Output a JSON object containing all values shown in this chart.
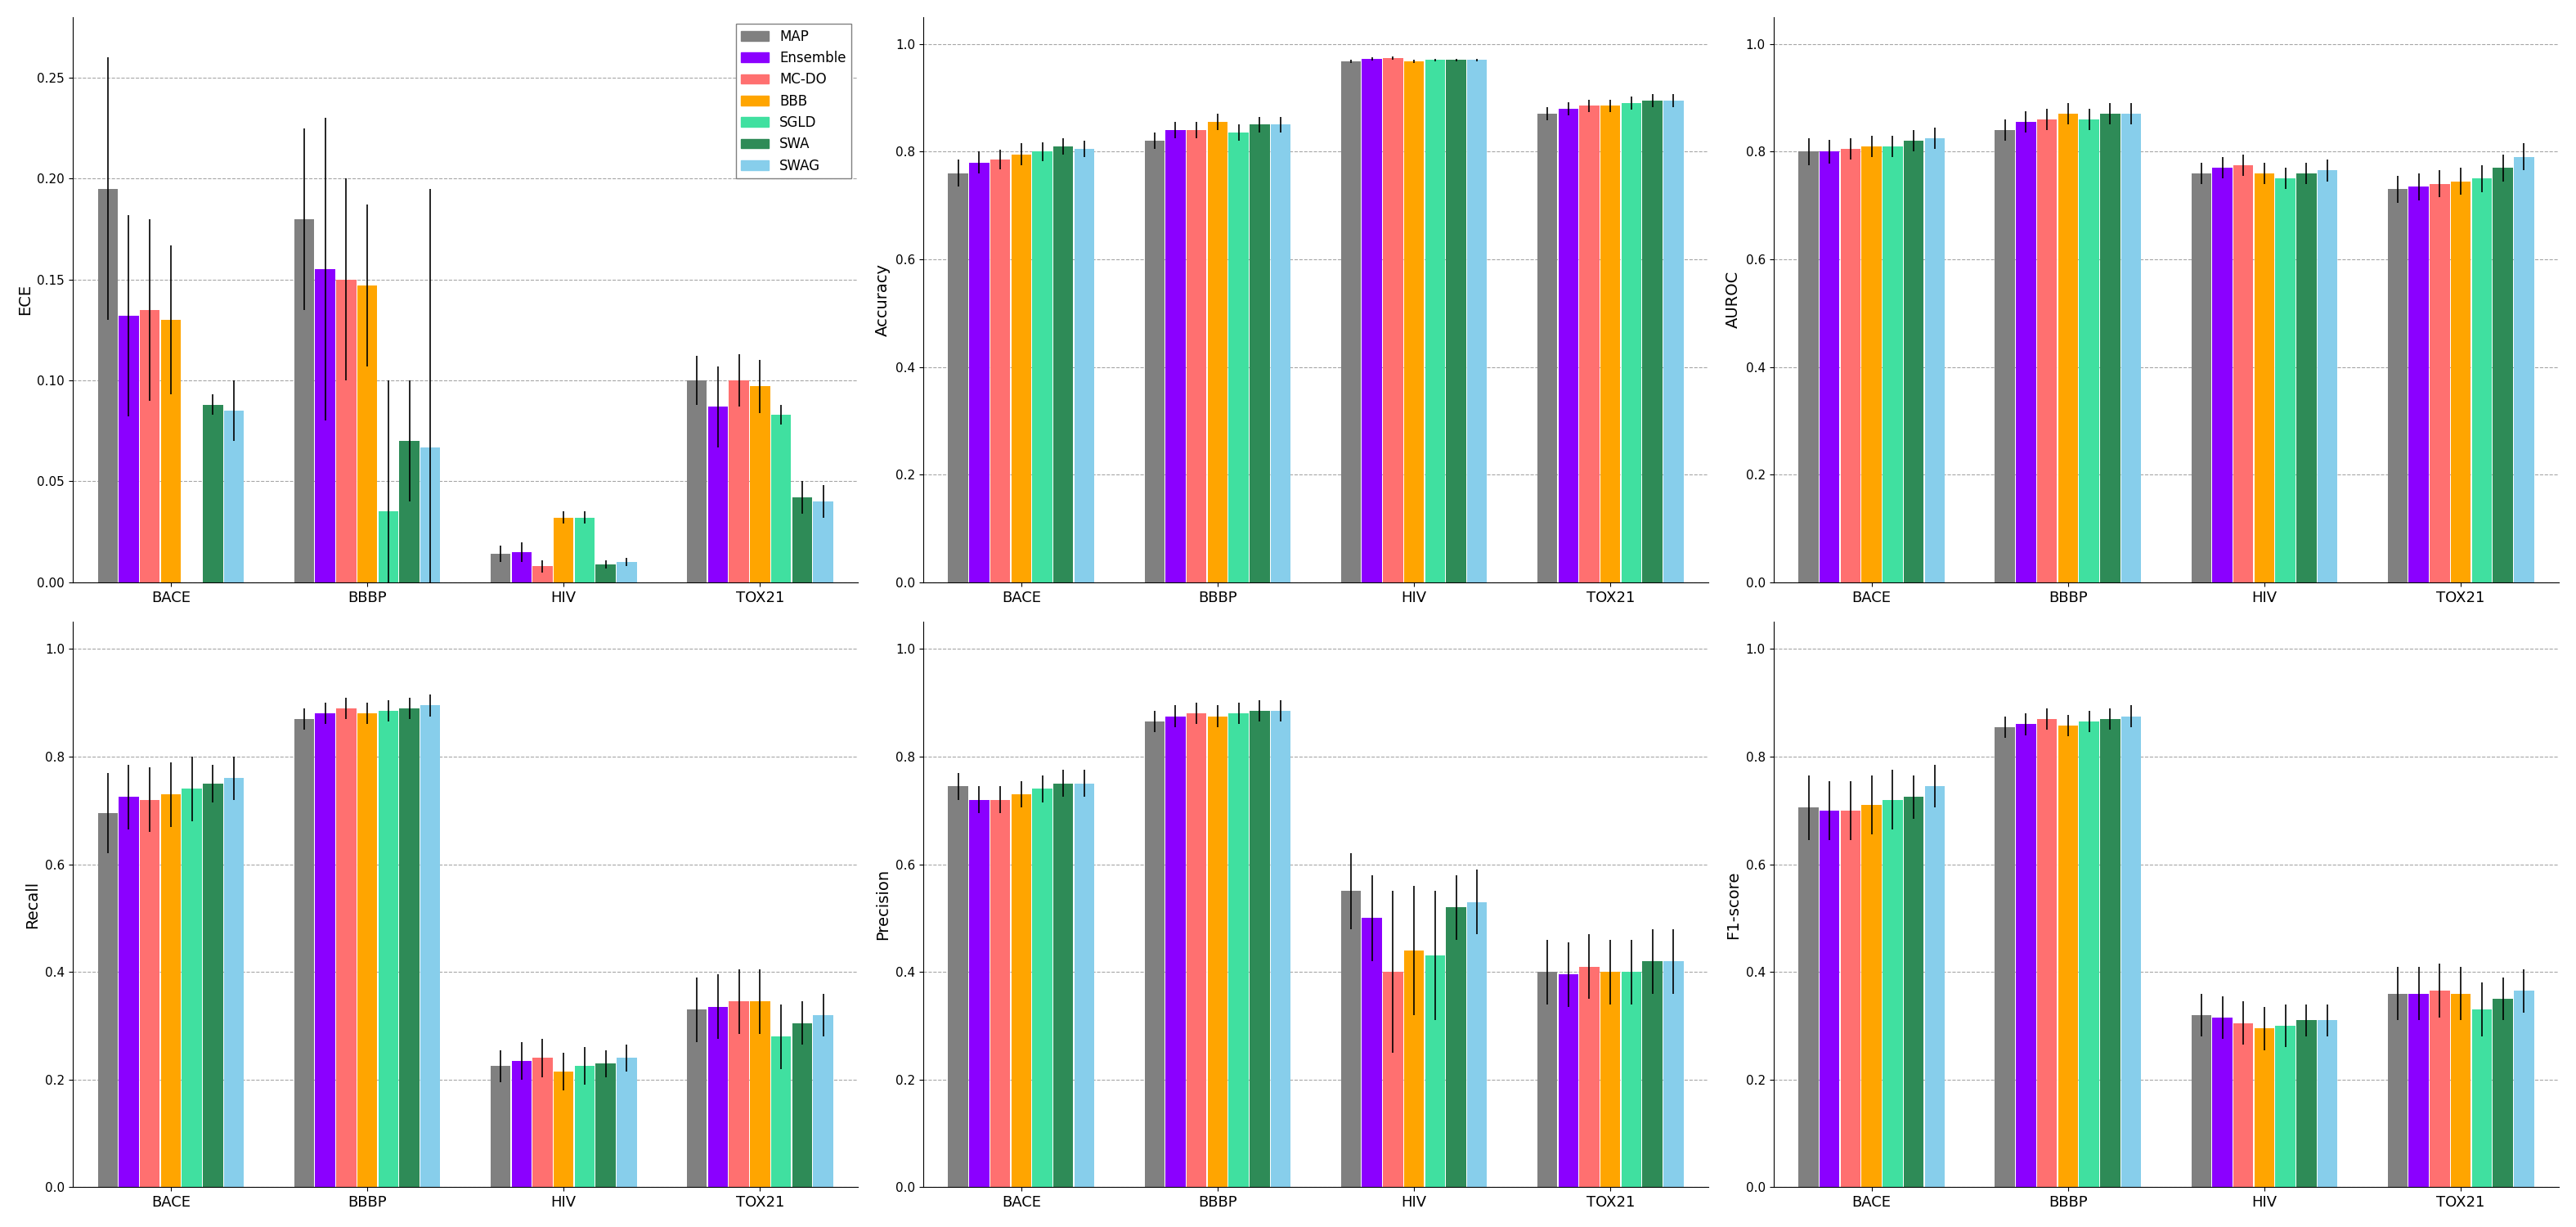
{
  "methods": [
    "MAP",
    "Ensemble",
    "MC-DO",
    "BBB",
    "SGLD",
    "SWA",
    "SWAG"
  ],
  "colors": [
    "#808080",
    "#8B00FF",
    "#FF7070",
    "#FFA500",
    "#40E0A0",
    "#2E8B57",
    "#87CEEB"
  ],
  "datasets": [
    "BACE",
    "BBBP",
    "HIV",
    "TOX21"
  ],
  "metrics": [
    "ECE",
    "Accuracy",
    "AUROC",
    "Recall",
    "Precision",
    "F1-score"
  ],
  "ECE": {
    "means": [
      [
        0.195,
        0.132,
        0.135,
        0.13,
        0.0,
        0.088,
        0.085
      ],
      [
        0.18,
        0.155,
        0.15,
        0.147,
        0.035,
        0.07,
        0.067
      ],
      [
        0.014,
        0.015,
        0.008,
        0.032,
        0.032,
        0.009,
        0.01
      ],
      [
        0.1,
        0.087,
        0.1,
        0.097,
        0.083,
        0.042,
        0.04
      ]
    ],
    "errors": [
      [
        0.065,
        0.05,
        0.045,
        0.037,
        0.0,
        0.005,
        0.015
      ],
      [
        0.045,
        0.075,
        0.05,
        0.04,
        0.065,
        0.03,
        0.128
      ],
      [
        0.004,
        0.005,
        0.003,
        0.003,
        0.003,
        0.002,
        0.002
      ],
      [
        0.012,
        0.02,
        0.013,
        0.013,
        0.005,
        0.008,
        0.008
      ]
    ],
    "ylim": [
      0,
      0.28
    ],
    "yticks": [
      0.0,
      0.05,
      0.1,
      0.15,
      0.2,
      0.25
    ]
  },
  "Accuracy": {
    "means": [
      [
        0.76,
        0.78,
        0.785,
        0.795,
        0.8,
        0.81,
        0.805
      ],
      [
        0.82,
        0.84,
        0.84,
        0.855,
        0.835,
        0.85,
        0.85
      ],
      [
        0.968,
        0.972,
        0.974,
        0.968,
        0.97,
        0.97,
        0.97
      ],
      [
        0.87,
        0.88,
        0.885,
        0.885,
        0.89,
        0.895,
        0.895
      ]
    ],
    "errors": [
      [
        0.025,
        0.02,
        0.018,
        0.02,
        0.018,
        0.015,
        0.015
      ],
      [
        0.015,
        0.015,
        0.015,
        0.015,
        0.015,
        0.015,
        0.015
      ],
      [
        0.003,
        0.003,
        0.003,
        0.003,
        0.003,
        0.003,
        0.003
      ],
      [
        0.012,
        0.012,
        0.012,
        0.012,
        0.012,
        0.012,
        0.012
      ]
    ],
    "ylim": [
      0,
      1.05
    ],
    "yticks": [
      0.0,
      0.2,
      0.4,
      0.6,
      0.8,
      1.0
    ]
  },
  "AUROC": {
    "means": [
      [
        0.8,
        0.8,
        0.805,
        0.81,
        0.81,
        0.82,
        0.825
      ],
      [
        0.84,
        0.855,
        0.86,
        0.87,
        0.86,
        0.87,
        0.87
      ],
      [
        0.76,
        0.77,
        0.775,
        0.76,
        0.75,
        0.76,
        0.765
      ],
      [
        0.73,
        0.735,
        0.74,
        0.745,
        0.75,
        0.77,
        0.79
      ]
    ],
    "errors": [
      [
        0.025,
        0.022,
        0.02,
        0.02,
        0.02,
        0.02,
        0.02
      ],
      [
        0.02,
        0.02,
        0.02,
        0.02,
        0.02,
        0.02,
        0.02
      ],
      [
        0.02,
        0.02,
        0.02,
        0.02,
        0.02,
        0.02,
        0.02
      ],
      [
        0.025,
        0.025,
        0.025,
        0.025,
        0.025,
        0.025,
        0.025
      ]
    ],
    "ylim": [
      0,
      1.05
    ],
    "yticks": [
      0.0,
      0.2,
      0.4,
      0.6,
      0.8,
      1.0
    ]
  },
  "Recall": {
    "means": [
      [
        0.695,
        0.725,
        0.72,
        0.73,
        0.74,
        0.75,
        0.76
      ],
      [
        0.87,
        0.88,
        0.89,
        0.88,
        0.885,
        0.89,
        0.895
      ],
      [
        0.225,
        0.235,
        0.24,
        0.215,
        0.225,
        0.23,
        0.24
      ],
      [
        0.33,
        0.335,
        0.345,
        0.345,
        0.28,
        0.305,
        0.32
      ]
    ],
    "errors": [
      [
        0.075,
        0.06,
        0.06,
        0.06,
        0.06,
        0.035,
        0.04
      ],
      [
        0.02,
        0.02,
        0.02,
        0.02,
        0.02,
        0.02,
        0.02
      ],
      [
        0.03,
        0.035,
        0.035,
        0.035,
        0.035,
        0.025,
        0.025
      ],
      [
        0.06,
        0.06,
        0.06,
        0.06,
        0.06,
        0.04,
        0.04
      ]
    ],
    "ylim": [
      0,
      1.05
    ],
    "yticks": [
      0.0,
      0.2,
      0.4,
      0.6,
      0.8,
      1.0
    ]
  },
  "Precision": {
    "means": [
      [
        0.745,
        0.72,
        0.72,
        0.73,
        0.74,
        0.75,
        0.75
      ],
      [
        0.865,
        0.875,
        0.88,
        0.875,
        0.88,
        0.885,
        0.885
      ],
      [
        0.55,
        0.5,
        0.4,
        0.44,
        0.43,
        0.52,
        0.53
      ],
      [
        0.4,
        0.395,
        0.41,
        0.4,
        0.4,
        0.42,
        0.42
      ]
    ],
    "errors": [
      [
        0.025,
        0.025,
        0.025,
        0.025,
        0.025,
        0.025,
        0.025
      ],
      [
        0.02,
        0.02,
        0.02,
        0.02,
        0.02,
        0.02,
        0.02
      ],
      [
        0.07,
        0.08,
        0.15,
        0.12,
        0.12,
        0.06,
        0.06
      ],
      [
        0.06,
        0.06,
        0.06,
        0.06,
        0.06,
        0.06,
        0.06
      ]
    ],
    "ylim": [
      0,
      1.05
    ],
    "yticks": [
      0.0,
      0.2,
      0.4,
      0.6,
      0.8,
      1.0
    ]
  },
  "F1-score": {
    "means": [
      [
        0.705,
        0.7,
        0.7,
        0.71,
        0.72,
        0.725,
        0.745
      ],
      [
        0.855,
        0.86,
        0.87,
        0.858,
        0.865,
        0.87,
        0.875
      ],
      [
        0.32,
        0.315,
        0.305,
        0.295,
        0.3,
        0.31,
        0.31
      ],
      [
        0.36,
        0.36,
        0.365,
        0.36,
        0.33,
        0.35,
        0.365
      ]
    ],
    "errors": [
      [
        0.06,
        0.055,
        0.055,
        0.055,
        0.055,
        0.04,
        0.04
      ],
      [
        0.02,
        0.02,
        0.02,
        0.02,
        0.02,
        0.02,
        0.02
      ],
      [
        0.04,
        0.04,
        0.04,
        0.04,
        0.04,
        0.03,
        0.03
      ],
      [
        0.05,
        0.05,
        0.05,
        0.05,
        0.05,
        0.04,
        0.04
      ]
    ],
    "ylim": [
      0,
      1.05
    ],
    "yticks": [
      0.0,
      0.2,
      0.4,
      0.6,
      0.8,
      1.0
    ]
  }
}
